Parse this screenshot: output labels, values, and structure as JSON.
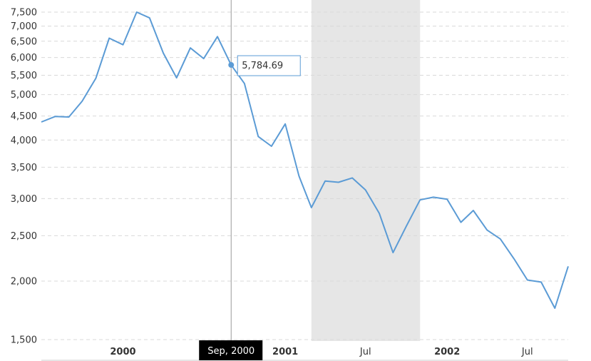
{
  "chart_data": {
    "type": "line",
    "y_scale": "log",
    "ylim": [
      1500,
      7800
    ],
    "xlim": [
      "1999-07-01",
      "2002-10-01"
    ],
    "grid": true,
    "colors": {
      "line": "#5b9bd5",
      "recession": "#e6e6e6",
      "grid": "#d9d9d9",
      "crosshair_label_bg": "#000000"
    },
    "y_ticks": [
      {
        "value": 1500,
        "label": "1,500"
      },
      {
        "value": 2000,
        "label": "2,000"
      },
      {
        "value": 2500,
        "label": "2,500"
      },
      {
        "value": 3000,
        "label": "3,000"
      },
      {
        "value": 3500,
        "label": "3,500"
      },
      {
        "value": 4000,
        "label": "4,000"
      },
      {
        "value": 4500,
        "label": "4,500"
      },
      {
        "value": 5000,
        "label": "5,000"
      },
      {
        "value": 5500,
        "label": "5,500"
      },
      {
        "value": 6000,
        "label": "6,000"
      },
      {
        "value": 6500,
        "label": "6,500"
      },
      {
        "value": 7000,
        "label": "7,000"
      },
      {
        "value": 7500,
        "label": "7,500"
      }
    ],
    "x_ticks": [
      {
        "date": "2000-01-01",
        "label": "2000",
        "major": true
      },
      {
        "date": "2001-01-01",
        "label": "2001",
        "major": true
      },
      {
        "date": "2001-07-01",
        "label": "Jul",
        "major": false
      },
      {
        "date": "2002-01-01",
        "label": "2002",
        "major": true
      },
      {
        "date": "2002-07-01",
        "label": "Jul",
        "major": false
      }
    ],
    "recession": {
      "start": "2001-03-01",
      "end": "2001-11-01"
    },
    "tooltip": {
      "date": "2000-09-01",
      "value": 5784.69,
      "value_label": "5,784.69",
      "date_label": "Sep, 2000"
    },
    "series": [
      {
        "x": [
          "1999-07-01",
          "1999-08-01",
          "1999-09-01",
          "1999-10-01",
          "1999-11-01",
          "1999-12-01",
          "2000-01-01",
          "2000-02-01",
          "2000-03-01",
          "2000-04-01",
          "2000-05-01",
          "2000-06-01",
          "2000-07-01",
          "2000-08-01",
          "2000-09-01",
          "2000-10-01",
          "2000-11-01",
          "2000-12-01",
          "2001-01-01",
          "2001-02-01",
          "2001-03-01",
          "2001-04-01",
          "2001-05-01",
          "2001-06-01",
          "2001-07-01",
          "2001-08-01",
          "2001-09-01",
          "2001-10-01",
          "2001-11-01",
          "2001-12-01",
          "2002-01-01",
          "2002-02-01",
          "2002-03-01",
          "2002-04-01",
          "2002-05-01",
          "2002-06-01",
          "2002-07-01",
          "2002-08-01",
          "2002-09-01",
          "2002-10-01"
        ],
        "values": [
          4370,
          4490,
          4480,
          4840,
          5420,
          6600,
          6390,
          7500,
          7290,
          6130,
          5430,
          6290,
          5970,
          6650,
          5784.69,
          5280,
          4070,
          3880,
          4330,
          3350,
          2870,
          3270,
          3250,
          3320,
          3130,
          2790,
          2300,
          2620,
          2980,
          3020,
          2990,
          2670,
          2830,
          2570,
          2460,
          2230,
          2010,
          1990,
          1750,
          2150
        ]
      }
    ]
  }
}
